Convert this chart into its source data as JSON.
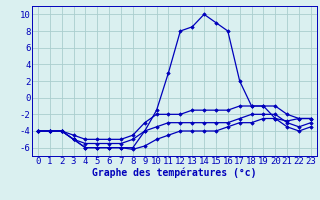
{
  "title": "Graphe des températures (°c)",
  "x_labels": [
    "0",
    "1",
    "2",
    "3",
    "4",
    "5",
    "6",
    "7",
    "8",
    "9",
    "10",
    "11",
    "12",
    "13",
    "14",
    "15",
    "16",
    "17",
    "18",
    "19",
    "20",
    "21",
    "22",
    "23"
  ],
  "x_values": [
    0,
    1,
    2,
    3,
    4,
    5,
    6,
    7,
    8,
    9,
    10,
    11,
    12,
    13,
    14,
    15,
    16,
    17,
    18,
    19,
    20,
    21,
    22,
    23
  ],
  "line1": [
    -4,
    -4,
    -4,
    -5,
    -6,
    -6,
    -6,
    -6,
    -6,
    -4,
    -1.5,
    3,
    8,
    8.5,
    10,
    9,
    8,
    2,
    -1,
    -1,
    -2.5,
    -2.8,
    -2.5,
    -2.5
  ],
  "line2": [
    -4,
    -4,
    -4,
    -4.5,
    -5,
    -5,
    -5,
    -5,
    -4.5,
    -3,
    -2,
    -2,
    -2,
    -1.5,
    -1.5,
    -1.5,
    -1.5,
    -1,
    -1,
    -1,
    -1,
    -2,
    -2.5,
    -2.5
  ],
  "line3": [
    -4,
    -4,
    -4,
    -5,
    -5.5,
    -5.5,
    -5.5,
    -5.5,
    -5,
    -4,
    -3.5,
    -3,
    -3,
    -3,
    -3,
    -3,
    -3,
    -2.5,
    -2,
    -2,
    -2,
    -3,
    -3.5,
    -3
  ],
  "line4": [
    -4,
    -4,
    -4,
    -5,
    -6,
    -6,
    -6,
    -6,
    -6.2,
    -5.8,
    -5,
    -4.5,
    -4,
    -4,
    -4,
    -4,
    -3.5,
    -3,
    -3,
    -2.5,
    -2.5,
    -3.5,
    -4,
    -3.5
  ],
  "bg_color": "#daf0f0",
  "grid_color": "#aacece",
  "line_color": "#0000bb",
  "marker": "D",
  "marker_size": 1.8,
  "ylim": [
    -7,
    11
  ],
  "yticks": [
    -6,
    -4,
    -2,
    0,
    2,
    4,
    6,
    8,
    10
  ],
  "tick_fontsize": 6.5,
  "title_fontsize": 7,
  "line_width": 0.9
}
